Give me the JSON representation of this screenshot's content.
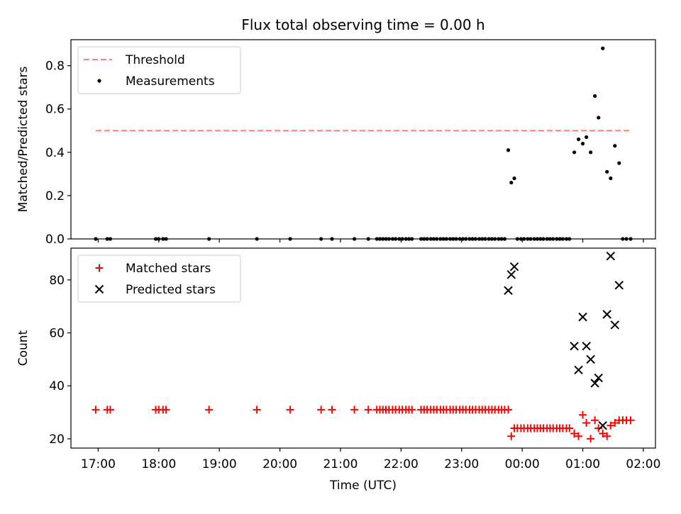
{
  "figure": {
    "title": "Flux total observing time = 0.00 h"
  },
  "chart_data": [
    {
      "type": "scatter",
      "panel": "top",
      "ylabel": "Matched/Predicted stars",
      "xlabel": "",
      "ylim": [
        0,
        0.92
      ],
      "yticks": [
        0.0,
        0.2,
        0.4,
        0.6,
        0.8
      ],
      "ytick_labels": [
        "0.0",
        "0.2",
        "0.4",
        "0.6",
        "0.8"
      ],
      "xlim": [
        16.55,
        26.2
      ],
      "xticks": [
        17,
        18,
        19,
        20,
        21,
        22,
        23,
        24,
        25,
        26
      ],
      "grid": false,
      "legend_position": "top-left",
      "series": [
        {
          "name": "Threshold",
          "kind": "dashed-line",
          "color": "#ff7f7f",
          "x": [
            16.96,
            25.79
          ],
          "y": [
            0.5,
            0.5
          ]
        },
        {
          "name": "Measurements",
          "kind": "points",
          "color": "#000000",
          "x": [
            16.96,
            17.15,
            17.2,
            17.95,
            18.0,
            18.07,
            18.12,
            18.83,
            19.62,
            20.17,
            20.68,
            20.86,
            21.23,
            21.46,
            21.6,
            21.65,
            21.7,
            21.75,
            21.8,
            21.86,
            21.91,
            21.97,
            22.02,
            22.08,
            22.13,
            22.18,
            22.33,
            22.38,
            22.43,
            22.49,
            22.54,
            22.59,
            22.65,
            22.7,
            22.75,
            22.81,
            22.86,
            22.91,
            22.97,
            23.02,
            23.07,
            23.13,
            23.18,
            23.23,
            23.29,
            23.34,
            23.39,
            23.45,
            23.5,
            23.55,
            23.61,
            23.66,
            23.71,
            23.77,
            23.82,
            23.87,
            23.92,
            23.98,
            24.03,
            24.09,
            24.14,
            24.2,
            24.25,
            24.3,
            24.35,
            24.41,
            24.46,
            24.51,
            24.57,
            24.62,
            24.67,
            24.73,
            24.78,
            24.86,
            24.93,
            25.0,
            25.06,
            25.13,
            25.2,
            25.26,
            25.33,
            25.4,
            25.46,
            25.53,
            25.6,
            25.66,
            25.72,
            25.79
          ],
          "y": [
            0,
            0,
            0,
            0,
            0,
            0,
            0,
            0,
            0,
            0,
            0,
            0,
            0,
            0,
            0,
            0,
            0,
            0,
            0,
            0,
            0,
            0,
            0,
            0,
            0,
            0,
            0,
            0,
            0,
            0,
            0,
            0,
            0,
            0,
            0,
            0,
            0,
            0,
            0,
            0,
            0,
            0,
            0,
            0,
            0,
            0,
            0,
            0,
            0,
            0,
            0,
            0,
            0,
            0,
            0,
            0,
            0,
            0,
            0,
            0,
            0,
            0,
            0,
            0,
            0,
            0,
            0,
            0,
            0,
            0,
            0,
            0,
            0,
            0,
            0,
            0,
            0,
            0,
            0,
            0,
            0,
            0,
            0,
            0,
            0,
            0,
            0,
            0
          ],
          "y_overrides": [
            {
              "x": 23.77,
              "y": 0.41
            },
            {
              "x": 23.82,
              "y": 0.26
            },
            {
              "x": 23.87,
              "y": 0.28
            },
            {
              "x": 24.86,
              "y": 0.4
            },
            {
              "x": 24.93,
              "y": 0.46
            },
            {
              "x": 25.0,
              "y": 0.44
            },
            {
              "x": 25.06,
              "y": 0.47
            },
            {
              "x": 25.13,
              "y": 0.4
            },
            {
              "x": 25.2,
              "y": 0.66
            },
            {
              "x": 25.26,
              "y": 0.56
            },
            {
              "x": 25.33,
              "y": 0.88
            },
            {
              "x": 25.4,
              "y": 0.31
            },
            {
              "x": 25.46,
              "y": 0.28
            },
            {
              "x": 25.53,
              "y": 0.43
            },
            {
              "x": 25.6,
              "y": 0.35
            }
          ]
        }
      ]
    },
    {
      "type": "scatter",
      "panel": "bottom",
      "ylabel": "Count",
      "xlabel": "Time (UTC)",
      "ylim": [
        16.5,
        92
      ],
      "yticks": [
        20,
        40,
        60,
        80
      ],
      "ytick_labels": [
        "20",
        "40",
        "60",
        "80"
      ],
      "xlim": [
        16.55,
        26.2
      ],
      "xticks": [
        17,
        18,
        19,
        20,
        21,
        22,
        23,
        24,
        25,
        26
      ],
      "xtick_labels": [
        "17:00",
        "18:00",
        "19:00",
        "20:00",
        "21:00",
        "22:00",
        "23:00",
        "00:00",
        "01:00",
        "02:00"
      ],
      "grid": false,
      "legend_position": "top-left",
      "series": [
        {
          "name": "Matched stars",
          "kind": "plus",
          "color": "#ff0000",
          "x": [
            16.96,
            17.15,
            17.2,
            17.95,
            18.0,
            18.07,
            18.12,
            18.83,
            19.62,
            20.17,
            20.68,
            20.86,
            21.23,
            21.46,
            21.6,
            21.65,
            21.7,
            21.75,
            21.8,
            21.86,
            21.91,
            21.97,
            22.02,
            22.08,
            22.13,
            22.18,
            22.33,
            22.38,
            22.43,
            22.49,
            22.54,
            22.59,
            22.65,
            22.7,
            22.75,
            22.81,
            22.86,
            22.91,
            22.97,
            23.02,
            23.07,
            23.13,
            23.18,
            23.23,
            23.29,
            23.34,
            23.39,
            23.45,
            23.5,
            23.55,
            23.61,
            23.66,
            23.71,
            23.77,
            23.82,
            23.87,
            23.92,
            23.98,
            24.03,
            24.09,
            24.14,
            24.2,
            24.25,
            24.3,
            24.35,
            24.41,
            24.46,
            24.51,
            24.57,
            24.62,
            24.67,
            24.73,
            24.78,
            24.86,
            24.93,
            25.0,
            25.06,
            25.13,
            25.2,
            25.26,
            25.33,
            25.4,
            25.46,
            25.53,
            25.6,
            25.66,
            25.72,
            25.79
          ],
          "y": [
            31,
            31,
            31,
            31,
            31,
            31,
            31,
            31,
            31,
            31,
            31,
            31,
            31,
            31,
            31,
            31,
            31,
            31,
            31,
            31,
            31,
            31,
            31,
            31,
            31,
            31,
            31,
            31,
            31,
            31,
            31,
            31,
            31,
            31,
            31,
            31,
            31,
            31,
            31,
            31,
            31,
            31,
            31,
            31,
            31,
            31,
            31,
            31,
            31,
            31,
            31,
            31,
            31,
            31,
            21,
            24,
            24,
            24,
            24,
            24,
            24,
            24,
            24,
            24,
            24,
            24,
            24,
            24,
            24,
            24,
            24,
            24,
            24,
            22,
            21,
            29,
            26,
            20,
            27,
            24,
            22,
            21,
            25,
            26,
            27,
            27,
            27,
            27
          ]
        },
        {
          "name": "Predicted stars",
          "kind": "x",
          "color": "#000000",
          "x": [
            23.77,
            23.82,
            23.87,
            24.86,
            24.93,
            25.0,
            25.06,
            25.13,
            25.2,
            25.26,
            25.33,
            25.4,
            25.46,
            25.53,
            25.6
          ],
          "y": [
            76,
            82,
            85,
            55,
            46,
            66,
            55,
            50,
            41,
            43,
            25,
            67,
            89,
            63,
            78
          ]
        }
      ]
    }
  ]
}
